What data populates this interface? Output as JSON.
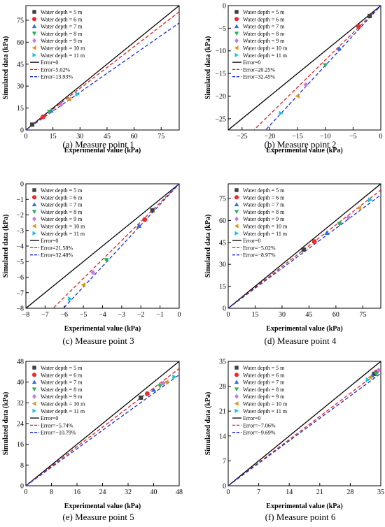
{
  "legend": {
    "markers": [
      {
        "label": "Water depth = 5 m",
        "color": "#404040",
        "shape": "square"
      },
      {
        "label": "Water depth = 6 m",
        "color": "#ee2a2a",
        "shape": "circle"
      },
      {
        "label": "Water depth = 7 m",
        "color": "#2f6be6",
        "shape": "triangle-up"
      },
      {
        "label": "Water depth = 8 m",
        "color": "#2db25c",
        "shape": "triangle-down"
      },
      {
        "label": "Water depth = 9 m",
        "color": "#c07ce6",
        "shape": "diamond"
      },
      {
        "label": "Water depth = 10 m",
        "color": "#d99a1a",
        "shape": "triangle-left"
      },
      {
        "label": "Water depth = 11 m",
        "color": "#22c4d6",
        "shape": "triangle-right"
      }
    ],
    "line_colors": [
      "#000000",
      "#e01e1e",
      "#1a2fd6"
    ]
  },
  "chart_data": [
    {
      "type": "scatter",
      "caption": "(a) Measure point 1",
      "xlabel": "Experimental value (kPa)",
      "ylabel": "Simulated data (kPa)",
      "xlim": [
        0,
        85
      ],
      "ylim": [
        0,
        85
      ],
      "xticks": [
        0,
        15,
        30,
        45,
        60,
        75
      ],
      "yticks": [
        0,
        15,
        30,
        45,
        60,
        75
      ],
      "legend_position": "top-left",
      "series": [
        {
          "name": "Water depth = 5 m",
          "x": 3.5,
          "y": 3.7
        },
        {
          "name": "Water depth = 6 m",
          "x": 9.5,
          "y": 9.0
        },
        {
          "name": "Water depth = 7 m",
          "x": 14.0,
          "y": 13.3
        },
        {
          "name": "Water depth = 8 m",
          "x": 13.0,
          "y": 12.5
        },
        {
          "name": "Water depth = 9 m",
          "x": 19.5,
          "y": 17.5
        },
        {
          "name": "Water depth = 10 m",
          "x": 24.0,
          "y": 21.0
        },
        {
          "name": "Water depth = 11 m",
          "x": 28.5,
          "y": 24.5
        }
      ],
      "lines": [
        {
          "name": "Error=0",
          "slope": 1.0
        },
        {
          "name": "Error=5.02%",
          "slope": 0.9498
        },
        {
          "name": "Error=13.93%",
          "slope": 0.8607
        }
      ]
    },
    {
      "type": "scatter",
      "caption": "(b) Measure point 2",
      "xlabel": "Experimental value (kPa)",
      "ylabel": "Simulated data (kPa)",
      "xlim": [
        -27.5,
        0
      ],
      "ylim": [
        -27.5,
        0
      ],
      "xticks": [
        -25,
        -20,
        -15,
        -10,
        -5,
        0
      ],
      "yticks": [
        -25,
        -20,
        -15,
        -10,
        -5,
        0
      ],
      "legend_position": "top-left",
      "series": [
        {
          "name": "Water depth = 5 m",
          "x": -2.0,
          "y": -2.3
        },
        {
          "name": "Water depth = 6 m",
          "x": -4.0,
          "y": -4.6
        },
        {
          "name": "Water depth = 7 m",
          "x": -7.5,
          "y": -9.5
        },
        {
          "name": "Water depth = 8 m",
          "x": -10.0,
          "y": -13.2
        },
        {
          "name": "Water depth = 9 m",
          "x": -13.5,
          "y": -17.5
        },
        {
          "name": "Water depth = 10 m",
          "x": -15.0,
          "y": -20.0
        },
        {
          "name": "Water depth = 11 m",
          "x": -18.0,
          "y": -23.8
        }
      ],
      "lines": [
        {
          "name": "Error=0",
          "slope": 1.0
        },
        {
          "name": "Error=20.25%",
          "slope": 1.2025
        },
        {
          "name": "Error=32.45%",
          "slope": 1.3245
        }
      ]
    },
    {
      "type": "scatter",
      "caption": "(c) Measure point 3",
      "xlabel": "Experimental value (kPa)",
      "ylabel": "Simulated data (kPa)",
      "xlim": [
        -8,
        0
      ],
      "ylim": [
        -8,
        0
      ],
      "xticks": [
        -8,
        -7,
        -6,
        -5,
        -4,
        -3,
        -2,
        -1,
        0
      ],
      "yticks": [
        -8,
        -7,
        -6,
        -5,
        -4,
        -3,
        -2,
        -1,
        0
      ],
      "legend_position": "top-left",
      "series": [
        {
          "name": "Water depth = 5 m",
          "x": -1.4,
          "y": -1.7
        },
        {
          "name": "Water depth = 6 m",
          "x": -1.8,
          "y": -2.3
        },
        {
          "name": "Water depth = 7 m",
          "x": -2.1,
          "y": -2.7
        },
        {
          "name": "Water depth = 8 m",
          "x": -3.8,
          "y": -4.9
        },
        {
          "name": "Water depth = 9 m",
          "x": -4.5,
          "y": -5.7
        },
        {
          "name": "Water depth = 10 m",
          "x": -5.0,
          "y": -6.5
        },
        {
          "name": "Water depth = 11 m",
          "x": -5.7,
          "y": -7.4
        }
      ],
      "lines": [
        {
          "name": "Error=0",
          "slope": 1.0
        },
        {
          "name": "Error=21.58%",
          "slope": 1.2158
        },
        {
          "name": "Error=32.48%",
          "slope": 1.3248
        }
      ]
    },
    {
      "type": "scatter",
      "caption": "(d) Measure point  4",
      "xlabel": "Experimental value (kPa)",
      "ylabel": "Simulated data (kPa)",
      "xlim": [
        0,
        85
      ],
      "ylim": [
        0,
        85
      ],
      "xticks": [
        0,
        15,
        30,
        45,
        60,
        75
      ],
      "yticks": [
        0,
        15,
        30,
        45,
        60,
        75
      ],
      "legend_position": "top-left",
      "series": [
        {
          "name": "Water depth = 5 m",
          "x": 42.0,
          "y": 40.0
        },
        {
          "name": "Water depth = 6 m",
          "x": 48.0,
          "y": 45.5
        },
        {
          "name": "Water depth = 7 m",
          "x": 55.0,
          "y": 51.5
        },
        {
          "name": "Water depth = 8 m",
          "x": 62.0,
          "y": 57.5
        },
        {
          "name": "Water depth = 9 m",
          "x": 67.0,
          "y": 62.0
        },
        {
          "name": "Water depth = 10 m",
          "x": 73.0,
          "y": 68.5
        },
        {
          "name": "Water depth = 11 m",
          "x": 79.0,
          "y": 74.0
        }
      ],
      "lines": [
        {
          "name": "Error=0",
          "slope": 1.0
        },
        {
          "name": "Error=−5.02%",
          "slope": 0.9498
        },
        {
          "name": "Error=−8.97%",
          "slope": 0.9103
        }
      ]
    },
    {
      "type": "scatter",
      "caption": "(e) Measure point 5",
      "xlabel": "Experimental value (kPa)",
      "ylabel": "Simulated data (kPa)",
      "xlim": [
        0,
        48
      ],
      "ylim": [
        0,
        48
      ],
      "xticks": [
        0,
        8,
        16,
        24,
        32,
        40,
        48
      ],
      "yticks": [
        0,
        8,
        16,
        24,
        32,
        40,
        48
      ],
      "legend_position": "top-left",
      "series": [
        {
          "name": "Water depth = 5 m",
          "x": 36.0,
          "y": 34.0
        },
        {
          "name": "Water depth = 6 m",
          "x": 38.0,
          "y": 35.5
        },
        {
          "name": "Water depth = 7 m",
          "x": 40.0,
          "y": 37.0
        },
        {
          "name": "Water depth = 8 m",
          "x": 42.0,
          "y": 38.5
        },
        {
          "name": "Water depth = 9 m",
          "x": 43.0,
          "y": 39.5
        },
        {
          "name": "Water depth = 10 m",
          "x": 44.0,
          "y": 40.0
        },
        {
          "name": "Water depth = 11 m",
          "x": 46.5,
          "y": 42.0
        }
      ],
      "lines": [
        {
          "name": "Error=0",
          "slope": 1.0
        },
        {
          "name": "Error=−5.74%",
          "slope": 0.9426
        },
        {
          "name": "Error=−10.79%",
          "slope": 0.8921
        }
      ]
    },
    {
      "type": "scatter",
      "caption": "(f) Measure point 6",
      "xlabel": "Experimental value (kPa)",
      "ylabel": "Simulated data (kPa)",
      "xlim": [
        0,
        35
      ],
      "ylim": [
        0,
        35
      ],
      "xticks": [
        0,
        7,
        14,
        21,
        28,
        35
      ],
      "yticks": [
        0,
        7,
        14,
        21,
        28,
        35
      ],
      "legend_position": "top-left",
      "series": [
        {
          "name": "Water depth = 5 m",
          "x": 33.5,
          "y": 31.5
        },
        {
          "name": "Water depth = 6 m",
          "x": 34.0,
          "y": 32.0
        },
        {
          "name": "Water depth = 7 m",
          "x": 33.0,
          "y": 31.0
        },
        {
          "name": "Water depth = 8 m",
          "x": 34.0,
          "y": 31.5
        },
        {
          "name": "Water depth = 9 m",
          "x": 34.5,
          "y": 32.5
        },
        {
          "name": "Water depth = 10 m",
          "x": 32.5,
          "y": 30.5
        },
        {
          "name": "Water depth = 11 m",
          "x": 32.0,
          "y": 29.8
        }
      ],
      "lines": [
        {
          "name": "Error=0",
          "slope": 1.0
        },
        {
          "name": "Error=−7.06%",
          "slope": 0.9294
        },
        {
          "name": "Error=−9.69%",
          "slope": 0.9031
        }
      ]
    }
  ]
}
